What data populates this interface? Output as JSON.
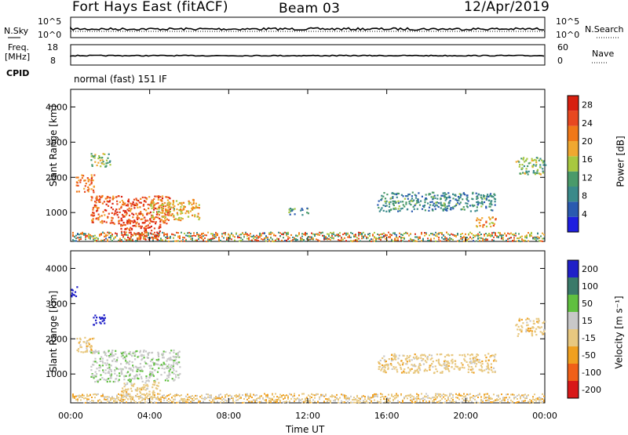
{
  "header": {
    "station": "Fort Hays East (fitACF)",
    "beam": "Beam 03",
    "date": "12/Apr/2019"
  },
  "params": {
    "nsky_label": "N.Sky",
    "nsky_tick_top": "10^5",
    "nsky_tick_bottom": "10^0",
    "nsearch_label": "N.Search",
    "nsearch_tick_top": "10^5",
    "nsearch_tick_bottom": "10^0",
    "freq_label": "Freq.",
    "freq_unit": "[MHz]",
    "freq_tick_top": "18",
    "freq_tick_bottom": "8",
    "nave_label": "Nave",
    "nave_tick_top": "60",
    "nave_tick_bottom": "0",
    "cpid_label": "CPID",
    "cpid_value": "normal (fast) 151 IF"
  },
  "colors": {
    "power": [
      "#1e1ee0",
      "#2a5ab0",
      "#3a8a8a",
      "#4a9a6a",
      "#a8c840",
      "#f0a830",
      "#f07818",
      "#e84820",
      "#d82010"
    ],
    "velocity": [
      "#2020c8",
      "#3a7a6a",
      "#60c040",
      "#c8c8c8",
      "#e8c880",
      "#f0a020",
      "#f06018",
      "#d81818"
    ]
  },
  "chart_data": [
    {
      "type": "heatmap",
      "name": "power",
      "ylabel": "Slant Range [km]",
      "xlabel": "",
      "xlim": [
        "00:00",
        "00:00"
      ],
      "ylim": [
        180,
        4500
      ],
      "x_ticks": [
        "00:00",
        "04:00",
        "08:00",
        "12:00",
        "16:00",
        "20:00",
        "00:00"
      ],
      "y_ticks": [
        1000,
        2000,
        3000,
        4000
      ],
      "colorbar": {
        "label": "Power [dB]",
        "ticks": [
          4,
          8,
          12,
          16,
          20,
          24,
          28
        ],
        "range": [
          0,
          30
        ]
      },
      "regions": [
        {
          "t_start": 0.25,
          "t_end": 1.2,
          "r_start": 1600,
          "r_end": 2100,
          "value": 22
        },
        {
          "t_start": 1.0,
          "t_end": 2.0,
          "r_start": 2300,
          "r_end": 2700,
          "value": 14
        },
        {
          "t_start": 1.0,
          "t_end": 5.0,
          "r_start": 700,
          "r_end": 1500,
          "value": 24
        },
        {
          "t_start": 2.5,
          "t_end": 4.5,
          "r_start": 250,
          "r_end": 800,
          "value": 26
        },
        {
          "t_start": 4.0,
          "t_end": 6.5,
          "r_start": 800,
          "r_end": 1400,
          "value": 18
        },
        {
          "t_start": 11.0,
          "t_end": 12.0,
          "r_start": 950,
          "r_end": 1150,
          "value": 10
        },
        {
          "t_start": 15.5,
          "t_end": 21.5,
          "r_start": 1050,
          "r_end": 1600,
          "value": 9
        },
        {
          "t_start": 20.5,
          "t_end": 21.5,
          "r_start": 600,
          "r_end": 900,
          "value": 20
        },
        {
          "t_start": 22.5,
          "t_end": 24.0,
          "r_start": 2100,
          "r_end": 2600,
          "value": 13
        }
      ]
    },
    {
      "type": "heatmap",
      "name": "velocity",
      "ylabel": "Slant Range [km]",
      "xlabel": "Time UT",
      "xlim": [
        "00:00",
        "00:00"
      ],
      "ylim": [
        180,
        4500
      ],
      "x_ticks": [
        "00:00",
        "04:00",
        "08:00",
        "12:00",
        "16:00",
        "20:00",
        "00:00"
      ],
      "y_ticks": [
        1000,
        2000,
        3000,
        4000
      ],
      "colorbar": {
        "label": "Velocity [m s⁻¹]",
        "ticks": [
          "200",
          "100",
          "50",
          "15",
          "-15",
          "-50",
          "-100",
          "-200"
        ],
        "range": [
          -250,
          250
        ]
      },
      "regions": [
        {
          "t_start": 0.25,
          "t_end": 1.2,
          "r_start": 1600,
          "r_end": 2100,
          "value": 0
        },
        {
          "t_start": 1.1,
          "t_end": 1.8,
          "r_start": 2400,
          "r_end": 2700,
          "value": 230
        },
        {
          "t_start": 0.0,
          "t_end": 0.3,
          "r_start": 3100,
          "r_end": 3500,
          "value": 220
        },
        {
          "t_start": 1.0,
          "t_end": 5.5,
          "r_start": 800,
          "r_end": 1700,
          "value": 40
        },
        {
          "t_start": 2.5,
          "t_end": 4.5,
          "r_start": 300,
          "r_end": 800,
          "value": 0
        },
        {
          "t_start": 15.5,
          "t_end": 21.5,
          "r_start": 1050,
          "r_end": 1600,
          "value": 0
        },
        {
          "t_start": 22.5,
          "t_end": 24.0,
          "r_start": 2100,
          "r_end": 2600,
          "value": 0
        }
      ]
    }
  ]
}
